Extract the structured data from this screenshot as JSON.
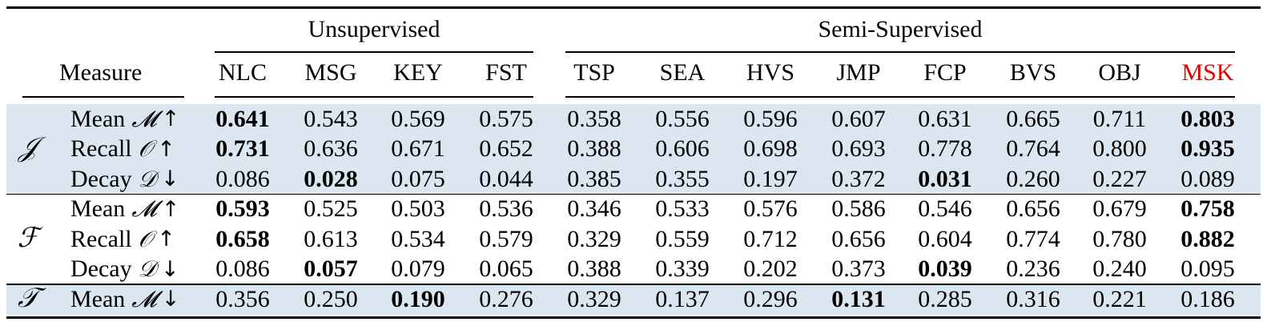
{
  "table": {
    "measure_header": "Measure",
    "groups": {
      "unsupervised": "Unsupervised",
      "semi_supervised": "Semi-Supervised"
    },
    "columns": [
      "NLC",
      "MSG",
      "KEY",
      "FST",
      "TSP",
      "SEA",
      "HVS",
      "JMP",
      "FCP",
      "BVS",
      "OBJ",
      "MSK"
    ],
    "highlight_column": "MSK",
    "highlight_color": "#e00000",
    "shade_color": "#dce6f1",
    "sections": [
      {
        "symbol": "𝒥",
        "shaded": true,
        "rows": [
          {
            "name": "Mean",
            "sym": "𝓜",
            "arrow": "↑",
            "values": [
              "0.641",
              "0.543",
              "0.569",
              "0.575",
              "0.358",
              "0.556",
              "0.596",
              "0.607",
              "0.631",
              "0.665",
              "0.711",
              "0.803"
            ],
            "bold": [
              0,
              11
            ]
          },
          {
            "name": "Recall",
            "sym": "𝒪",
            "arrow": "↑",
            "values": [
              "0.731",
              "0.636",
              "0.671",
              "0.652",
              "0.388",
              "0.606",
              "0.698",
              "0.693",
              "0.778",
              "0.764",
              "0.800",
              "0.935"
            ],
            "bold": [
              0,
              11
            ]
          },
          {
            "name": "Decay",
            "sym": "𝒟",
            "arrow": "↓",
            "values": [
              "0.086",
              "0.028",
              "0.075",
              "0.044",
              "0.385",
              "0.355",
              "0.197",
              "0.372",
              "0.031",
              "0.260",
              "0.227",
              "0.089"
            ],
            "bold": [
              1,
              8
            ]
          }
        ]
      },
      {
        "symbol": "ℱ",
        "shaded": false,
        "rows": [
          {
            "name": "Mean",
            "sym": "𝓜",
            "arrow": "↑",
            "values": [
              "0.593",
              "0.525",
              "0.503",
              "0.536",
              "0.346",
              "0.533",
              "0.576",
              "0.586",
              "0.546",
              "0.656",
              "0.679",
              "0.758"
            ],
            "bold": [
              0,
              11
            ]
          },
          {
            "name": "Recall",
            "sym": "𝒪",
            "arrow": "↑",
            "values": [
              "0.658",
              "0.613",
              "0.534",
              "0.579",
              "0.329",
              "0.559",
              "0.712",
              "0.656",
              "0.604",
              "0.774",
              "0.780",
              "0.882"
            ],
            "bold": [
              0,
              11
            ]
          },
          {
            "name": "Decay",
            "sym": "𝒟",
            "arrow": "↓",
            "values": [
              "0.086",
              "0.057",
              "0.079",
              "0.065",
              "0.388",
              "0.339",
              "0.202",
              "0.373",
              "0.039",
              "0.236",
              "0.240",
              "0.095"
            ],
            "bold": [
              1,
              8
            ]
          }
        ]
      },
      {
        "symbol": "𝒯",
        "shaded": true,
        "rows": [
          {
            "name": "Mean",
            "sym": "𝓜",
            "arrow": "↓",
            "values": [
              "0.356",
              "0.250",
              "0.190",
              "0.276",
              "0.329",
              "0.137",
              "0.296",
              "0.131",
              "0.285",
              "0.316",
              "0.221",
              "0.186"
            ],
            "bold": [
              2,
              7
            ]
          }
        ]
      }
    ]
  }
}
